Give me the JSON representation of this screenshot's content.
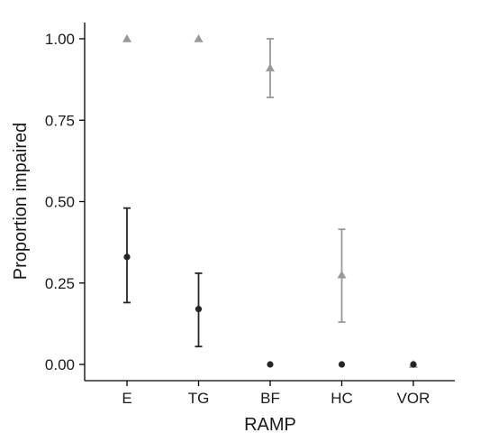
{
  "chart_data": {
    "type": "scatter",
    "title": "",
    "xlabel": "RAMP",
    "ylabel": "Proportion impaired",
    "categories": [
      "E",
      "TG",
      "BF",
      "HC",
      "VOR"
    ],
    "ylim": [
      0.0,
      1.0
    ],
    "yticks": [
      "0.00",
      "0.25",
      "0.50",
      "0.75",
      "1.00"
    ],
    "grid": false,
    "legend": "none",
    "series": [
      {
        "marker": "circle",
        "color": "#262626",
        "points": [
          {
            "x": "E",
            "y": 0.33,
            "lower": 0.19,
            "upper": 0.48
          },
          {
            "x": "TG",
            "y": 0.17,
            "lower": 0.055,
            "upper": 0.28
          },
          {
            "x": "BF",
            "y": 0.0
          },
          {
            "x": "HC",
            "y": 0.0
          },
          {
            "x": "VOR",
            "y": 0.0
          }
        ]
      },
      {
        "marker": "triangle",
        "color": "#999999",
        "points": [
          {
            "x": "E",
            "y": 1.0
          },
          {
            "x": "TG",
            "y": 1.0
          },
          {
            "x": "BF",
            "y": 0.91,
            "lower": 0.82,
            "upper": 1.0
          },
          {
            "x": "HC",
            "y": 0.275,
            "lower": 0.13,
            "upper": 0.415
          },
          {
            "x": "VOR",
            "y": 0.0
          }
        ]
      }
    ]
  }
}
